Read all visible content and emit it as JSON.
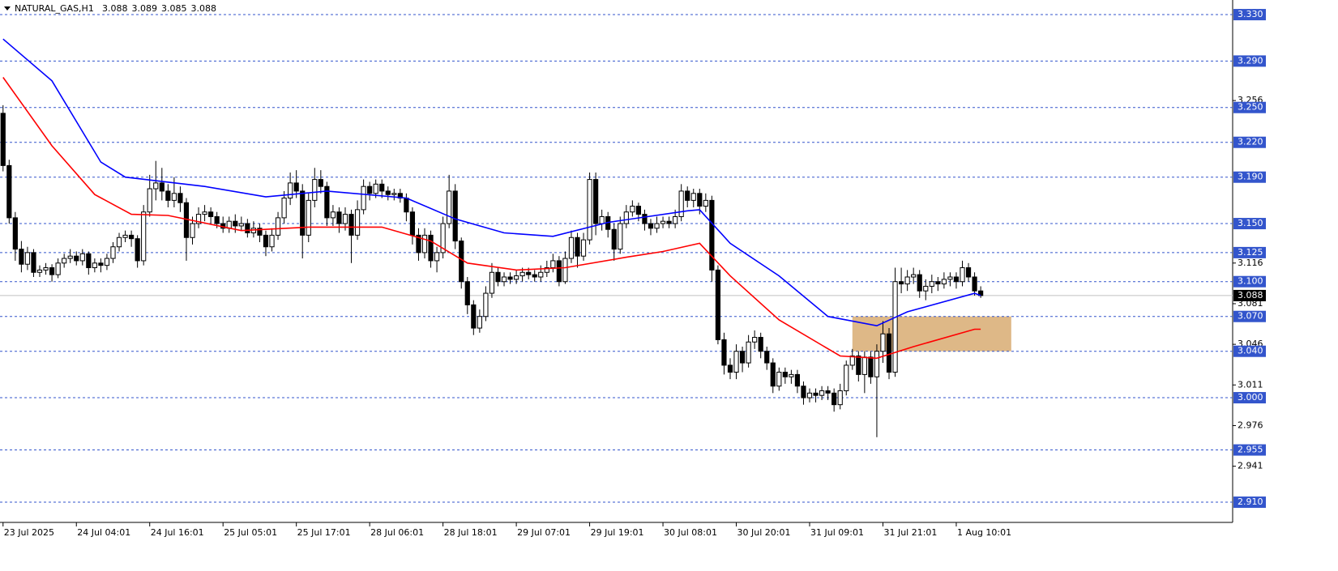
{
  "chart_data": {
    "type": "candlestick",
    "symbol": "NATURAL_GAS,H1",
    "header_values": [
      3.088,
      3.089,
      3.085,
      3.088
    ],
    "open": [
      3.245,
      3.2,
      3.155,
      3.128,
      3.115,
      3.125,
      3.108,
      3.11,
      3.112,
      3.106,
      3.116,
      3.12,
      3.122,
      3.118,
      3.124,
      3.112,
      3.116,
      3.114,
      3.12,
      3.13,
      3.138,
      3.14,
      3.137,
      3.118,
      3.16,
      3.18,
      3.185,
      3.178,
      3.17,
      3.176,
      3.168,
      3.138,
      3.15,
      3.158,
      3.16,
      3.156,
      3.15,
      3.146,
      3.152,
      3.148,
      3.15,
      3.142,
      3.146,
      3.14,
      3.13,
      3.14,
      3.155,
      3.172,
      3.185,
      3.178,
      3.14,
      3.17,
      3.188,
      3.182,
      3.155,
      3.16,
      3.15,
      3.158,
      3.14,
      3.162,
      3.182,
      3.176,
      3.184,
      3.178,
      3.175,
      3.176,
      3.172,
      3.16,
      3.14,
      3.125,
      3.14,
      3.118,
      3.125,
      3.15,
      3.178,
      3.135,
      3.1,
      3.08,
      3.06,
      3.07,
      3.09,
      3.108,
      3.1,
      3.104,
      3.102,
      3.105,
      3.108,
      3.106,
      3.104,
      3.108,
      3.112,
      3.118,
      3.1,
      3.12,
      3.138,
      3.122,
      3.136,
      3.188,
      3.15,
      3.156,
      3.145,
      3.128,
      3.15,
      3.16,
      3.165,
      3.158,
      3.15,
      3.146,
      3.15,
      3.152,
      3.15,
      3.156,
      3.178,
      3.17,
      3.176,
      3.165,
      3.17,
      3.11,
      3.05,
      3.028,
      3.022,
      3.04,
      3.03,
      3.048,
      3.052,
      3.04,
      3.03,
      3.01,
      3.022,
      3.018,
      3.02,
      3.01,
      3.0,
      3.004,
      3.002,
      3.006,
      3.004,
      2.994,
      3.006,
      3.028,
      3.036,
      3.02,
      3.035,
      3.018,
      3.04,
      3.055,
      3.022,
      3.1,
      3.098,
      3.104,
      3.106,
      3.092,
      3.096,
      3.1,
      3.098,
      3.102,
      3.104,
      3.1,
      3.112,
      3.104,
      3.092
    ],
    "high": [
      3.252,
      3.205,
      3.16,
      3.135,
      3.13,
      3.128,
      3.114,
      3.116,
      3.115,
      3.12,
      3.124,
      3.128,
      3.126,
      3.128,
      3.126,
      3.12,
      3.12,
      3.124,
      3.134,
      3.142,
      3.144,
      3.144,
      3.14,
      3.166,
      3.192,
      3.204,
      3.198,
      3.184,
      3.19,
      3.182,
      3.172,
      3.156,
      3.164,
      3.166,
      3.164,
      3.16,
      3.156,
      3.156,
      3.158,
      3.156,
      3.154,
      3.152,
      3.15,
      3.144,
      3.146,
      3.16,
      3.178,
      3.194,
      3.196,
      3.184,
      3.176,
      3.198,
      3.196,
      3.186,
      3.166,
      3.164,
      3.164,
      3.162,
      3.17,
      3.188,
      3.186,
      3.188,
      3.188,
      3.182,
      3.18,
      3.18,
      3.176,
      3.164,
      3.146,
      3.146,
      3.144,
      3.13,
      3.156,
      3.192,
      3.184,
      3.138,
      3.104,
      3.084,
      3.076,
      3.096,
      3.116,
      3.112,
      3.108,
      3.108,
      3.11,
      3.112,
      3.112,
      3.11,
      3.114,
      3.118,
      3.124,
      3.122,
      3.126,
      3.144,
      3.142,
      3.142,
      3.194,
      3.194,
      3.162,
      3.16,
      3.15,
      3.156,
      3.166,
      3.17,
      3.168,
      3.162,
      3.154,
      3.156,
      3.156,
      3.156,
      3.162,
      3.184,
      3.182,
      3.18,
      3.18,
      3.176,
      3.174,
      3.114,
      3.056,
      3.034,
      3.046,
      3.044,
      3.054,
      3.058,
      3.056,
      3.044,
      3.034,
      3.026,
      3.026,
      3.024,
      3.024,
      3.014,
      3.008,
      3.008,
      3.01,
      3.01,
      3.008,
      3.012,
      3.032,
      3.042,
      3.04,
      3.04,
      3.04,
      3.046,
      3.066,
      3.06,
      3.112,
      3.112,
      3.11,
      3.112,
      3.11,
      3.102,
      3.106,
      3.104,
      3.108,
      3.108,
      3.108,
      3.118,
      3.116,
      3.108,
      3.096
    ],
    "low": [
      3.195,
      3.15,
      3.118,
      3.108,
      3.11,
      3.104,
      3.104,
      3.106,
      3.1,
      3.103,
      3.112,
      3.116,
      3.114,
      3.114,
      3.106,
      3.108,
      3.108,
      3.11,
      3.116,
      3.126,
      3.134,
      3.13,
      3.112,
      3.114,
      3.156,
      3.17,
      3.17,
      3.164,
      3.164,
      3.16,
      3.118,
      3.132,
      3.146,
      3.152,
      3.15,
      3.146,
      3.142,
      3.142,
      3.142,
      3.144,
      3.138,
      3.138,
      3.134,
      3.122,
      3.126,
      3.136,
      3.15,
      3.166,
      3.172,
      3.12,
      3.134,
      3.164,
      3.176,
      3.148,
      3.148,
      3.142,
      3.144,
      3.116,
      3.136,
      3.158,
      3.17,
      3.172,
      3.172,
      3.17,
      3.17,
      3.168,
      3.152,
      3.132,
      3.118,
      3.12,
      3.112,
      3.108,
      3.12,
      3.146,
      3.128,
      3.094,
      3.072,
      3.054,
      3.056,
      3.066,
      3.086,
      3.096,
      3.096,
      3.098,
      3.098,
      3.1,
      3.102,
      3.1,
      3.1,
      3.104,
      3.108,
      3.096,
      3.098,
      3.116,
      3.112,
      3.118,
      3.132,
      3.14,
      3.144,
      3.138,
      3.118,
      3.124,
      3.146,
      3.156,
      3.152,
      3.144,
      3.14,
      3.142,
      3.146,
      3.146,
      3.146,
      3.152,
      3.164,
      3.164,
      3.158,
      3.16,
      3.1,
      3.046,
      3.02,
      3.016,
      3.016,
      3.022,
      3.026,
      3.042,
      3.034,
      3.024,
      3.004,
      3.006,
      3.012,
      3.012,
      3.004,
      2.994,
      2.996,
      2.996,
      2.998,
      2.998,
      2.988,
      2.99,
      3.002,
      3.024,
      3.014,
      3.004,
      3.012,
      2.966,
      3.03,
      3.016,
      3.018,
      3.09,
      3.092,
      3.098,
      3.086,
      3.084,
      3.09,
      3.092,
      3.094,
      3.096,
      3.094,
      3.096,
      3.1,
      3.088,
      3.086
    ],
    "close": [
      3.2,
      3.155,
      3.128,
      3.115,
      3.125,
      3.108,
      3.11,
      3.112,
      3.106,
      3.116,
      3.12,
      3.122,
      3.118,
      3.124,
      3.112,
      3.116,
      3.114,
      3.12,
      3.13,
      3.138,
      3.14,
      3.137,
      3.118,
      3.16,
      3.18,
      3.185,
      3.178,
      3.17,
      3.176,
      3.168,
      3.138,
      3.15,
      3.158,
      3.16,
      3.156,
      3.15,
      3.146,
      3.152,
      3.148,
      3.15,
      3.142,
      3.146,
      3.14,
      3.13,
      3.14,
      3.155,
      3.172,
      3.185,
      3.178,
      3.14,
      3.17,
      3.188,
      3.182,
      3.155,
      3.16,
      3.15,
      3.158,
      3.14,
      3.162,
      3.182,
      3.176,
      3.184,
      3.178,
      3.175,
      3.176,
      3.172,
      3.16,
      3.14,
      3.125,
      3.14,
      3.118,
      3.125,
      3.15,
      3.178,
      3.135,
      3.1,
      3.08,
      3.06,
      3.07,
      3.09,
      3.108,
      3.1,
      3.104,
      3.102,
      3.105,
      3.108,
      3.106,
      3.104,
      3.108,
      3.112,
      3.118,
      3.1,
      3.12,
      3.138,
      3.122,
      3.136,
      3.188,
      3.15,
      3.156,
      3.145,
      3.128,
      3.15,
      3.16,
      3.165,
      3.158,
      3.15,
      3.146,
      3.15,
      3.152,
      3.15,
      3.156,
      3.178,
      3.17,
      3.176,
      3.165,
      3.17,
      3.11,
      3.05,
      3.028,
      3.022,
      3.04,
      3.03,
      3.048,
      3.052,
      3.04,
      3.03,
      3.01,
      3.022,
      3.018,
      3.02,
      3.01,
      3.0,
      3.004,
      3.002,
      3.006,
      3.004,
      2.994,
      3.006,
      3.028,
      3.036,
      3.02,
      3.035,
      3.018,
      3.04,
      3.055,
      3.022,
      3.1,
      3.098,
      3.104,
      3.106,
      3.092,
      3.096,
      3.1,
      3.098,
      3.102,
      3.104,
      3.1,
      3.112,
      3.104,
      3.092,
      3.088
    ],
    "series": [
      {
        "color": "#0000ff",
        "x": [
          0,
          8,
          16,
          20,
          33,
          43,
          53,
          66,
          74,
          82,
          90,
          99,
          112,
          114,
          119,
          127,
          135,
          143,
          148,
          159,
          160
        ],
        "values": [
          3.309,
          3.273,
          3.203,
          3.19,
          3.182,
          3.173,
          3.178,
          3.172,
          3.154,
          3.142,
          3.139,
          3.151,
          3.161,
          3.162,
          3.133,
          3.105,
          3.07,
          3.062,
          3.074,
          3.09,
          3.088
        ]
      },
      {
        "color": "#ff0000",
        "x": [
          0,
          8,
          15,
          21,
          27,
          39,
          50,
          62,
          70,
          76,
          84,
          92,
          102,
          108,
          114,
          119,
          127,
          137,
          143,
          149,
          159,
          160
        ],
        "values": [
          3.276,
          3.217,
          3.175,
          3.158,
          3.157,
          3.144,
          3.147,
          3.147,
          3.135,
          3.116,
          3.11,
          3.112,
          3.121,
          3.126,
          3.133,
          3.105,
          3.067,
          3.036,
          3.034,
          3.044,
          3.059,
          3.059
        ]
      }
    ],
    "zone": {
      "x": [
        139,
        165
      ],
      "y": [
        3.04,
        3.07
      ],
      "color": "#deb887"
    },
    "price": 3.088,
    "xlim": [
      -0.5,
      201.1
    ],
    "ylim": [
      2.8926,
      3.3426
    ],
    "xticks": [
      {
        "value": 0,
        "label": "23 Jul 2025"
      },
      {
        "value": 12,
        "label": "24 Jul 04:01"
      },
      {
        "value": 24,
        "label": "24 Jul 16:01"
      },
      {
        "value": 36,
        "label": "25 Jul 05:01"
      },
      {
        "value": 48,
        "label": "25 Jul 17:01"
      },
      {
        "value": 60,
        "label": "28 Jul 06:01"
      },
      {
        "value": 72,
        "label": "28 Jul 18:01"
      },
      {
        "value": 84,
        "label": "29 Jul 07:01"
      },
      {
        "value": 96,
        "label": "29 Jul 19:01"
      },
      {
        "value": 108,
        "label": "30 Jul 08:01"
      },
      {
        "value": 120,
        "label": "30 Jul 20:01"
      },
      {
        "value": 132,
        "label": "31 Jul 09:01"
      },
      {
        "value": 144,
        "label": "31 Jul 21:01"
      },
      {
        "value": 156,
        "label": "1 Aug 10:01"
      }
    ],
    "yticks": [
      3.256,
      3.116,
      3.081,
      3.046,
      3.011,
      2.976,
      2.941
    ],
    "levels": [
      {
        "value": 3.33,
        "label": "3.330"
      },
      {
        "value": 3.29,
        "label": "3.290"
      },
      {
        "value": 3.25,
        "label": "3.250"
      },
      {
        "value": 3.22,
        "label": "3.220"
      },
      {
        "value": 3.19,
        "label": "3.190"
      },
      {
        "value": 3.15,
        "label": "3.150"
      },
      3.125,
      {
        "value": 3.1,
        "label": "3.100"
      },
      {
        "value": 3.07,
        "label": "3.070"
      },
      {
        "value": 3.04,
        "label": "3.040"
      },
      {
        "value": 3,
        "label": "3.000"
      },
      2.955,
      {
        "value": 2.91,
        "label": "2.910"
      }
    ],
    "level_color": "#3355cc"
  }
}
